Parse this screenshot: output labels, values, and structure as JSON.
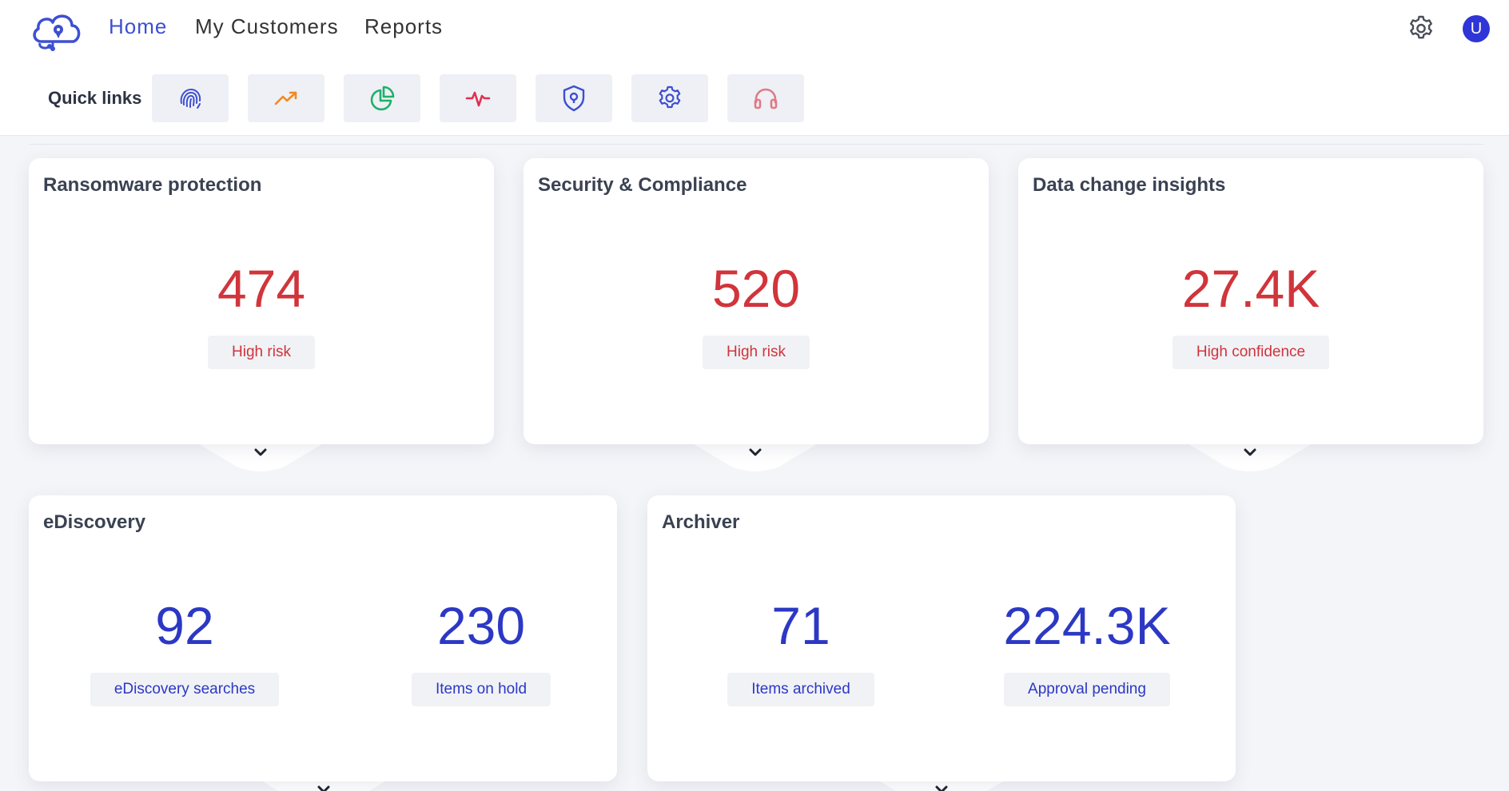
{
  "nav": {
    "items": [
      {
        "label": "Home",
        "active": true
      },
      {
        "label": "My Customers",
        "active": false
      },
      {
        "label": "Reports",
        "active": false
      }
    ],
    "avatar_initial": "U"
  },
  "quick_links": {
    "label": "Quick links",
    "items": [
      {
        "icon": "fingerprint-icon",
        "color": "#3e4fd1"
      },
      {
        "icon": "trending-up-icon",
        "color": "#f08a24"
      },
      {
        "icon": "pie-chart-icon",
        "color": "#1fb06a"
      },
      {
        "icon": "activity-icon",
        "color": "#e0304f"
      },
      {
        "icon": "shield-icon",
        "color": "#3e4fd1"
      },
      {
        "icon": "gear-icon",
        "color": "#3e4fd1"
      },
      {
        "icon": "headphones-icon",
        "color": "#e07a86"
      }
    ]
  },
  "cards": {
    "ransomware": {
      "title": "Ransomware protection",
      "value": "474",
      "badge": "High risk"
    },
    "security": {
      "title": "Security & Compliance",
      "value": "520",
      "badge": "High risk"
    },
    "data_change": {
      "title": "Data change insights",
      "value": "27.4K",
      "badge": "High confidence"
    },
    "ediscovery": {
      "title": "eDiscovery",
      "metrics": [
        {
          "value": "92",
          "badge": "eDiscovery searches"
        },
        {
          "value": "230",
          "badge": "Items on hold"
        }
      ]
    },
    "archiver": {
      "title": "Archiver",
      "metrics": [
        {
          "value": "71",
          "badge": "Items archived"
        },
        {
          "value": "224.3K",
          "badge": "Approval pending"
        }
      ]
    }
  },
  "colors": {
    "accent": "#3e4fd1",
    "risk_red": "#d1343b",
    "metric_blue": "#2c38c4",
    "avatar": "#2f35d6"
  }
}
